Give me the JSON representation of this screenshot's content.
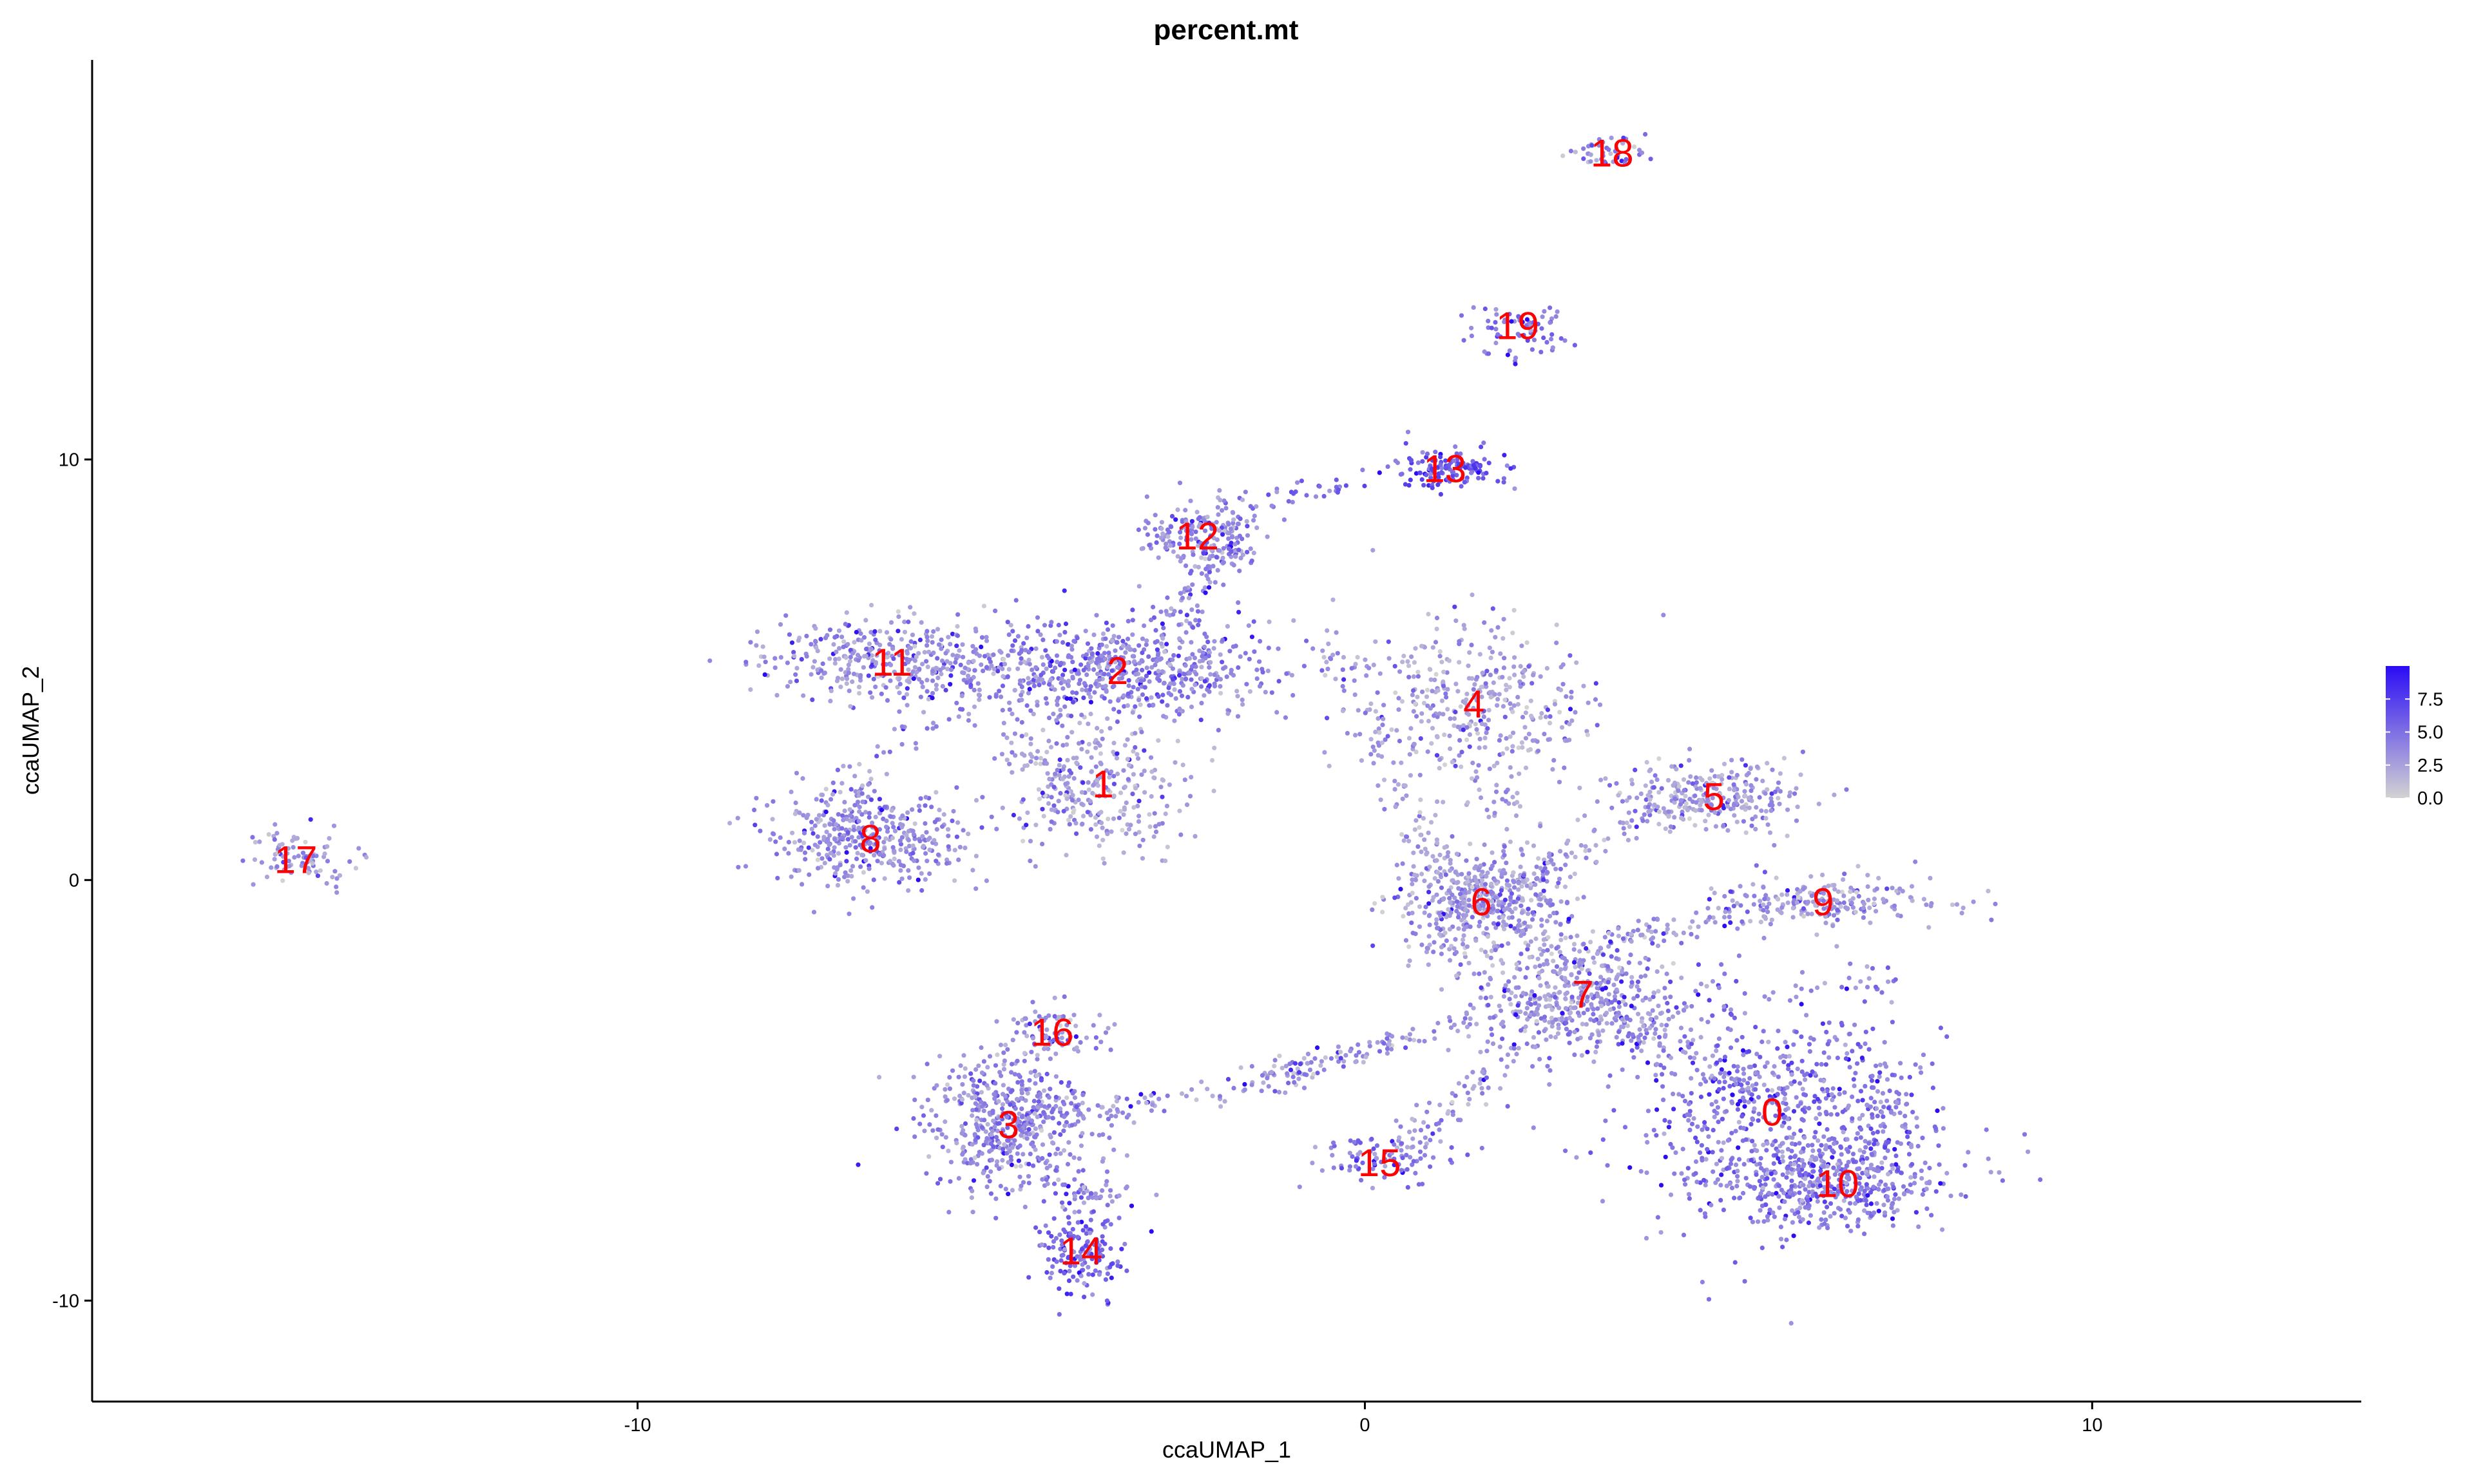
{
  "chart_data": {
    "type": "scatter",
    "title": "percent.mt",
    "xlabel": "ccaUMAP_1",
    "ylabel": "ccaUMAP_2",
    "xlim": [
      -17.5,
      13.7
    ],
    "ylim": [
      -12.4,
      19.5
    ],
    "x_ticks": [
      -10,
      0,
      10
    ],
    "y_ticks": [
      -10,
      0,
      10
    ],
    "x_tick_labels": [
      "-10",
      "0",
      "10"
    ],
    "y_tick_labels": [
      "-10",
      "0",
      "10"
    ],
    "grid": false,
    "legend": {
      "placement": "right",
      "type": "colorbar",
      "range": [
        0,
        10
      ],
      "ticks": [
        0.0,
        2.5,
        5.0,
        7.5
      ],
      "tick_labels": [
        "0.0",
        "2.5",
        "5.0",
        "7.5"
      ],
      "color_low": "#d3d3d3",
      "color_high": "#2a0cf5"
    },
    "cluster_label_color": "#ff0000",
    "clusters": [
      {
        "label": "0",
        "x": 5.6,
        "y": -5.5,
        "sx": 1.1,
        "sy": 1.3,
        "n": 650,
        "mean_mt": 4.5
      },
      {
        "label": "1",
        "x": -3.6,
        "y": 2.3,
        "sx": 0.6,
        "sy": 0.9,
        "n": 260,
        "mean_mt": 2.5
      },
      {
        "label": "2",
        "x": -3.4,
        "y": 5.0,
        "sx": 1.1,
        "sy": 0.6,
        "n": 650,
        "mean_mt": 4.0
      },
      {
        "label": "3",
        "x": -4.9,
        "y": -5.8,
        "sx": 0.6,
        "sy": 0.8,
        "n": 520,
        "mean_mt": 3.8
      },
      {
        "label": "4",
        "x": 1.5,
        "y": 4.2,
        "sx": 0.8,
        "sy": 1.0,
        "n": 380,
        "mean_mt": 2.6
      },
      {
        "label": "5",
        "x": 4.8,
        "y": 2.0,
        "sx": 0.7,
        "sy": 0.4,
        "n": 260,
        "mean_mt": 2.8
      },
      {
        "label": "6",
        "x": 1.6,
        "y": -0.5,
        "sx": 0.6,
        "sy": 0.6,
        "n": 420,
        "mean_mt": 3.0
      },
      {
        "label": "7",
        "x": 3.0,
        "y": -2.7,
        "sx": 0.8,
        "sy": 0.7,
        "n": 420,
        "mean_mt": 3.2
      },
      {
        "label": "8",
        "x": -6.8,
        "y": 1.0,
        "sx": 0.7,
        "sy": 0.6,
        "n": 420,
        "mean_mt": 3.5
      },
      {
        "label": "9",
        "x": 6.3,
        "y": -0.5,
        "sx": 0.8,
        "sy": 0.3,
        "n": 200,
        "mean_mt": 3.0
      },
      {
        "label": "10",
        "x": 6.5,
        "y": -7.2,
        "sx": 0.8,
        "sy": 0.5,
        "n": 420,
        "mean_mt": 4.2
      },
      {
        "label": "11",
        "x": -6.5,
        "y": 5.2,
        "sx": 0.9,
        "sy": 0.5,
        "n": 360,
        "mean_mt": 3.2
      },
      {
        "label": "12",
        "x": -2.3,
        "y": 8.2,
        "sx": 0.4,
        "sy": 0.4,
        "n": 180,
        "mean_mt": 3.6
      },
      {
        "label": "13",
        "x": 1.1,
        "y": 9.8,
        "sx": 0.4,
        "sy": 0.25,
        "n": 140,
        "mean_mt": 6.0
      },
      {
        "label": "14",
        "x": -3.9,
        "y": -8.8,
        "sx": 0.3,
        "sy": 0.5,
        "n": 160,
        "mean_mt": 5.5
      },
      {
        "label": "15",
        "x": 0.2,
        "y": -6.7,
        "sx": 0.45,
        "sy": 0.25,
        "n": 80,
        "mean_mt": 4.5
      },
      {
        "label": "16",
        "x": -4.3,
        "y": -3.6,
        "sx": 0.35,
        "sy": 0.3,
        "n": 90,
        "mean_mt": 3.5
      },
      {
        "label": "17",
        "x": -14.7,
        "y": 0.5,
        "sx": 0.35,
        "sy": 0.3,
        "n": 60,
        "mean_mt": 3.2
      },
      {
        "label": "18",
        "x": 3.4,
        "y": 17.3,
        "sx": 0.25,
        "sy": 0.15,
        "n": 45,
        "mean_mt": 3.4
      },
      {
        "label": "19",
        "x": 2.1,
        "y": 13.2,
        "sx": 0.3,
        "sy": 0.25,
        "n": 50,
        "mean_mt": 5.0
      }
    ],
    "bridges": [
      {
        "from": [
          -1.5,
          -4.8
        ],
        "to": [
          -0.3,
          -4.2
        ],
        "n": 70,
        "mean_mt": 3.5
      },
      {
        "from": [
          -4.0,
          -5.6
        ],
        "to": [
          -1.5,
          -4.8
        ],
        "n": 60,
        "mean_mt": 3.5
      },
      {
        "from": [
          -0.3,
          -4.2
        ],
        "to": [
          2.5,
          -2.8
        ],
        "n": 90,
        "mean_mt": 3.2
      },
      {
        "from": [
          0.3,
          -6.6
        ],
        "to": [
          3.0,
          -2.7
        ],
        "n": 110,
        "mean_mt": 3.2
      },
      {
        "from": [
          1.5,
          -0.5
        ],
        "to": [
          4.6,
          2.0
        ],
        "n": 90,
        "mean_mt": 3.0
      },
      {
        "from": [
          3.0,
          -2.7
        ],
        "to": [
          5.5,
          -5.2
        ],
        "n": 90,
        "mean_mt": 3.4
      },
      {
        "from": [
          -0.5,
          5.5
        ],
        "to": [
          1.2,
          -0.2
        ],
        "n": 100,
        "mean_mt": 2.8
      },
      {
        "from": [
          1.8,
          3.0
        ],
        "to": [
          2.6,
          -2.3
        ],
        "n": 80,
        "mean_mt": 2.9
      },
      {
        "from": [
          -2.6,
          6.2
        ],
        "to": [
          -1.7,
          8.6
        ],
        "n": 80,
        "mean_mt": 3.4
      },
      {
        "from": [
          -1.7,
          9.0
        ],
        "to": [
          -0.1,
          9.5
        ],
        "n": 30,
        "mean_mt": 5.0
      },
      {
        "from": [
          -7.8,
          1.3
        ],
        "to": [
          -5.6,
          4.3
        ],
        "n": 40,
        "mean_mt": 3.0
      },
      {
        "from": [
          -5.0,
          3.5
        ],
        "to": [
          -3.8,
          1.6
        ],
        "n": 60,
        "mean_mt": 2.8
      },
      {
        "from": [
          3.2,
          -1.5
        ],
        "to": [
          5.8,
          -0.6
        ],
        "n": 70,
        "mean_mt": 3.0
      },
      {
        "from": [
          1.2,
          -1.5
        ],
        "to": [
          0.8,
          -1.5
        ],
        "n": 25,
        "mean_mt": 2.8
      },
      {
        "from": [
          -14.9,
          1.1
        ],
        "to": [
          -14.2,
          -0.2
        ],
        "n": 25,
        "mean_mt": 3.2
      },
      {
        "from": [
          1.7,
          12.5
        ],
        "to": [
          3.0,
          12.9
        ],
        "n": 20,
        "mean_mt": 5.0
      },
      {
        "from": [
          6.6,
          -2.9
        ],
        "to": [
          7.1,
          -2.3
        ],
        "n": 20,
        "mean_mt": 4.0
      },
      {
        "from": [
          7.2,
          -5.0
        ],
        "to": [
          7.2,
          -6.7
        ],
        "n": 40,
        "mean_mt": 4.2
      },
      {
        "from": [
          -4.0,
          -7.5
        ],
        "to": [
          -3.4,
          -7.5
        ],
        "n": 40,
        "mean_mt": 4.0
      }
    ]
  }
}
